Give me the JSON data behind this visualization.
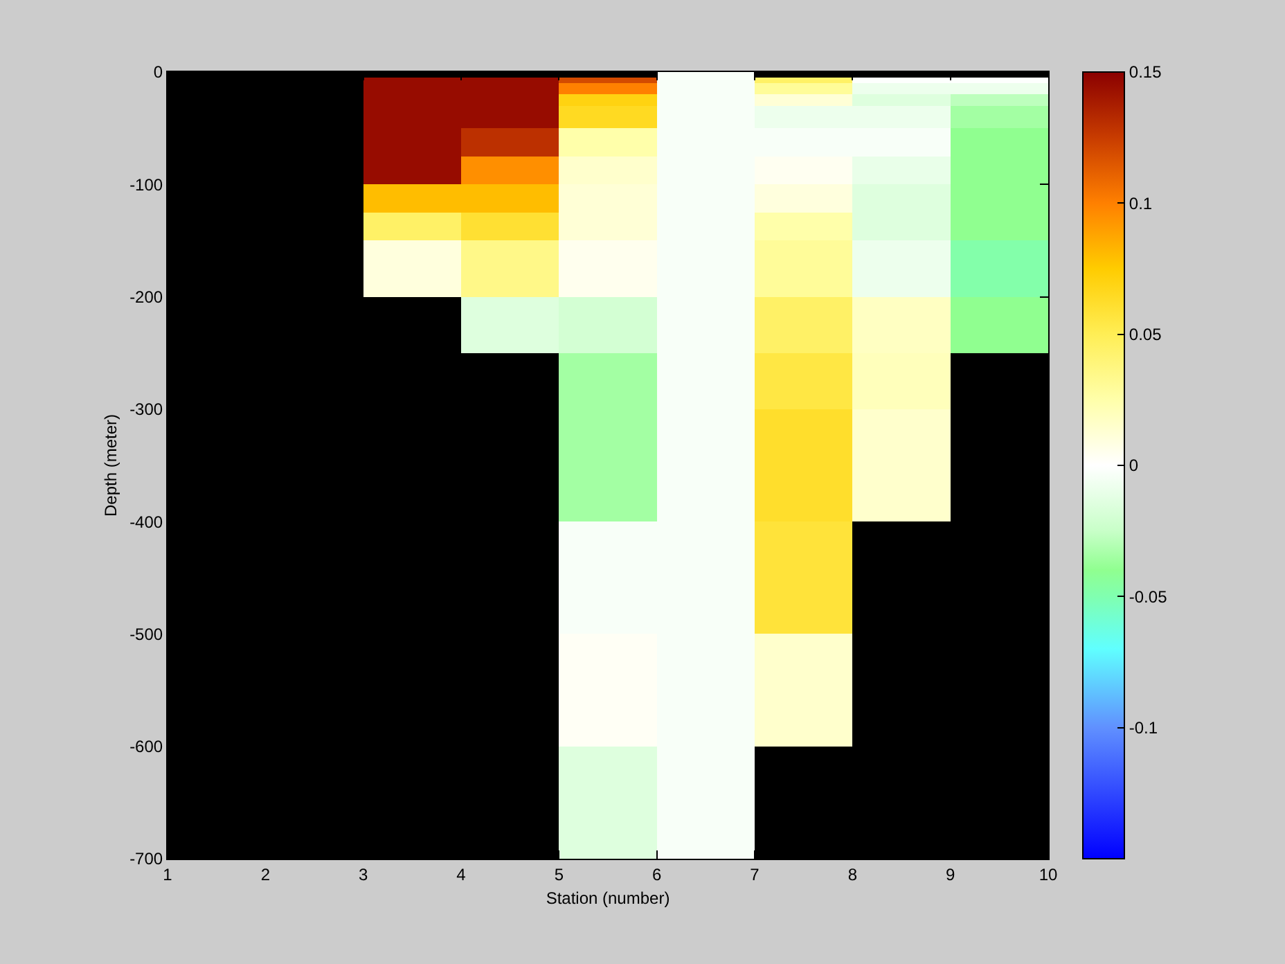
{
  "chart_data": {
    "type": "heatmap",
    "xlabel": "Station (number)",
    "ylabel": "Depth (meter)",
    "x": [
      1.5,
      2.5,
      3.5,
      4.5,
      5.5,
      6.5,
      7.5,
      8.5,
      9.5
    ],
    "y": [
      -2.5,
      -7.5,
      -12.5,
      -17.5,
      -22.5,
      -27.5,
      -32.5,
      -37.5,
      -42.5,
      -47.5,
      -52.5,
      -57.5,
      -62.5,
      -67.5,
      -72.5,
      -77.5,
      -82.5,
      -87.5,
      -92.5,
      -97.5,
      -102.5,
      -107.5,
      -112.5,
      -117.5,
      -122.5,
      -127.5,
      -132.5,
      -137.5,
      -142.5,
      -147.5,
      -152.5,
      -157.5,
      -162.5,
      -167.5,
      -172.5,
      -177.5,
      -182.5,
      -187.5,
      -192.5,
      -197.5,
      -202.5,
      -207.5,
      -212.5,
      -217.5,
      -222.5,
      -227.5,
      -232.5,
      -237.5,
      -242.5,
      -247.5,
      -252.5,
      -257.5,
      -262.5,
      -267.5,
      -272.5,
      -277.5,
      -282.5,
      -287.5,
      -292.5,
      -297.5,
      -302.5,
      -307.5,
      -312.5,
      -317.5,
      -322.5,
      -327.5,
      -332.5,
      -337.5,
      -342.5,
      -347.5,
      -352.5,
      -357.5,
      -362.5,
      -367.5,
      -372.5,
      -377.5,
      -382.5,
      -387.5,
      -392.5,
      -397.5,
      -402.5,
      -407.5,
      -412.5,
      -417.5,
      -422.5,
      -427.5,
      -432.5,
      -437.5,
      -442.5,
      -447.5,
      -452.5,
      -457.5,
      -462.5,
      -467.5,
      -472.5,
      -477.5,
      -482.5,
      -487.5,
      -492.5,
      -497.5,
      -502.5,
      -507.5,
      -512.5,
      -517.5,
      -522.5,
      -527.5,
      -532.5,
      -537.5,
      -542.5,
      -547.5,
      -552.5,
      -557.5,
      -562.5,
      -567.5,
      -572.5,
      -577.5,
      -582.5,
      -587.5,
      -592.5,
      -597.5,
      -602.5,
      -607.5,
      -612.5,
      -617.5,
      -622.5,
      -627.5,
      -632.5,
      -637.5,
      -642.5,
      -647.5,
      -652.5,
      -657.5,
      -662.5,
      -667.5,
      -672.5,
      -677.5,
      -682.5,
      -687.5,
      -692.5,
      -697.5
    ],
    "cells": [
      [
        null,
        null,
        null,
        null,
        null,
        -0.003,
        null,
        null,
        null
      ],
      [
        null,
        null,
        0.145,
        0.145,
        0.12,
        -0.003,
        0.045,
        -0.001,
        -0.001
      ],
      [
        null,
        null,
        0.145,
        0.145,
        0.1,
        -0.003,
        0.03,
        -0.008,
        -0.008
      ],
      [
        null,
        null,
        0.145,
        0.145,
        0.1,
        -0.003,
        0.03,
        -0.008,
        -0.008
      ],
      [
        null,
        null,
        0.145,
        0.145,
        0.07,
        -0.003,
        0.012,
        -0.015,
        -0.028
      ],
      [
        null,
        null,
        0.145,
        0.145,
        0.07,
        -0.003,
        0.012,
        -0.015,
        -0.028
      ],
      [
        null,
        null,
        0.145,
        0.145,
        0.065,
        -0.003,
        -0.008,
        -0.008,
        -0.035
      ],
      [
        null,
        null,
        0.145,
        0.145,
        0.065,
        -0.003,
        -0.008,
        -0.008,
        -0.035
      ],
      [
        null,
        null,
        0.145,
        0.145,
        0.065,
        -0.003,
        -0.008,
        -0.008,
        -0.035
      ],
      [
        null,
        null,
        0.145,
        0.145,
        0.065,
        -0.003,
        -0.008,
        -0.008,
        -0.035
      ],
      [
        null,
        null,
        0.145,
        0.13,
        0.025,
        -0.003,
        -0.003,
        -0.003,
        -0.04
      ],
      [
        null,
        null,
        0.145,
        0.13,
        0.025,
        -0.003,
        -0.003,
        -0.003,
        -0.04
      ],
      [
        null,
        null,
        0.145,
        0.13,
        0.025,
        -0.003,
        -0.003,
        -0.003,
        -0.04
      ],
      [
        null,
        null,
        0.145,
        0.13,
        0.025,
        -0.003,
        -0.003,
        -0.003,
        -0.04
      ],
      [
        null,
        null,
        0.145,
        0.13,
        0.025,
        -0.003,
        -0.003,
        -0.003,
        -0.04
      ],
      [
        null,
        null,
        0.145,
        0.095,
        0.015,
        -0.003,
        0.004,
        -0.01,
        -0.04
      ],
      [
        null,
        null,
        0.145,
        0.095,
        0.015,
        -0.003,
        0.004,
        -0.01,
        -0.04
      ],
      [
        null,
        null,
        0.145,
        0.095,
        0.015,
        -0.003,
        0.004,
        -0.01,
        -0.04
      ],
      [
        null,
        null,
        0.145,
        0.095,
        0.015,
        -0.003,
        0.004,
        -0.01,
        -0.04
      ],
      [
        null,
        null,
        0.145,
        0.095,
        0.015,
        -0.003,
        0.004,
        -0.01,
        -0.04
      ],
      [
        null,
        null,
        0.08,
        0.08,
        0.012,
        -0.003,
        0.01,
        -0.015,
        -0.04
      ],
      [
        null,
        null,
        0.08,
        0.08,
        0.012,
        -0.003,
        0.01,
        -0.015,
        -0.04
      ],
      [
        null,
        null,
        0.08,
        0.08,
        0.012,
        -0.003,
        0.01,
        -0.015,
        -0.04
      ],
      [
        null,
        null,
        0.08,
        0.08,
        0.012,
        -0.003,
        0.01,
        -0.015,
        -0.04
      ],
      [
        null,
        null,
        0.08,
        0.08,
        0.012,
        -0.003,
        0.01,
        -0.015,
        -0.04
      ],
      [
        null,
        null,
        0.045,
        0.06,
        0.012,
        -0.003,
        0.025,
        -0.015,
        -0.04
      ],
      [
        null,
        null,
        0.045,
        0.06,
        0.012,
        -0.003,
        0.025,
        -0.015,
        -0.04
      ],
      [
        null,
        null,
        0.045,
        0.06,
        0.012,
        -0.003,
        0.025,
        -0.015,
        -0.04
      ],
      [
        null,
        null,
        0.045,
        0.06,
        0.012,
        -0.003,
        0.025,
        -0.015,
        -0.04
      ],
      [
        null,
        null,
        0.045,
        0.06,
        0.012,
        -0.003,
        0.025,
        -0.015,
        -0.04
      ],
      [
        null,
        null,
        0.01,
        0.035,
        0.005,
        -0.003,
        0.03,
        -0.008,
        -0.048
      ],
      [
        null,
        null,
        0.01,
        0.035,
        0.005,
        -0.003,
        0.03,
        -0.008,
        -0.048
      ],
      [
        null,
        null,
        0.01,
        0.035,
        0.005,
        -0.003,
        0.03,
        -0.008,
        -0.048
      ],
      [
        null,
        null,
        0.01,
        0.035,
        0.005,
        -0.003,
        0.03,
        -0.008,
        -0.048
      ],
      [
        null,
        null,
        0.01,
        0.035,
        0.005,
        -0.003,
        0.03,
        -0.008,
        -0.048
      ],
      [
        null,
        null,
        0.01,
        0.035,
        0.005,
        -0.003,
        0.03,
        -0.008,
        -0.048
      ],
      [
        null,
        null,
        0.01,
        0.035,
        0.005,
        -0.003,
        0.03,
        -0.008,
        -0.048
      ],
      [
        null,
        null,
        0.01,
        0.035,
        0.005,
        -0.003,
        0.03,
        -0.008,
        -0.048
      ],
      [
        null,
        null,
        0.01,
        0.035,
        0.005,
        -0.003,
        0.03,
        -0.008,
        -0.048
      ],
      [
        null,
        null,
        0.01,
        0.035,
        0.005,
        -0.003,
        0.03,
        -0.008,
        -0.048
      ],
      [
        null,
        null,
        null,
        -0.015,
        -0.02,
        -0.003,
        0.045,
        0.018,
        -0.04
      ],
      [
        null,
        null,
        null,
        -0.015,
        -0.02,
        -0.003,
        0.045,
        0.018,
        -0.04
      ],
      [
        null,
        null,
        null,
        -0.015,
        -0.02,
        -0.003,
        0.045,
        0.018,
        -0.04
      ],
      [
        null,
        null,
        null,
        -0.015,
        -0.02,
        -0.003,
        0.045,
        0.018,
        -0.04
      ],
      [
        null,
        null,
        null,
        -0.015,
        -0.02,
        -0.003,
        0.045,
        0.018,
        -0.04
      ],
      [
        null,
        null,
        null,
        -0.015,
        -0.02,
        -0.003,
        0.045,
        0.018,
        -0.04
      ],
      [
        null,
        null,
        null,
        -0.015,
        -0.02,
        -0.003,
        0.045,
        0.018,
        -0.04
      ],
      [
        null,
        null,
        null,
        -0.015,
        -0.02,
        -0.003,
        0.045,
        0.018,
        -0.04
      ],
      [
        null,
        null,
        null,
        -0.015,
        -0.02,
        -0.003,
        0.045,
        0.018,
        -0.04
      ],
      [
        null,
        null,
        null,
        -0.015,
        -0.02,
        -0.003,
        0.045,
        0.018,
        -0.04
      ],
      [
        null,
        null,
        null,
        null,
        -0.035,
        -0.003,
        0.055,
        0.02,
        null
      ],
      [
        null,
        null,
        null,
        null,
        -0.035,
        -0.003,
        0.055,
        0.02,
        null
      ],
      [
        null,
        null,
        null,
        null,
        -0.035,
        -0.003,
        0.055,
        0.02,
        null
      ],
      [
        null,
        null,
        null,
        null,
        -0.035,
        -0.003,
        0.055,
        0.02,
        null
      ],
      [
        null,
        null,
        null,
        null,
        -0.035,
        -0.003,
        0.055,
        0.02,
        null
      ],
      [
        null,
        null,
        null,
        null,
        -0.035,
        -0.003,
        0.055,
        0.02,
        null
      ],
      [
        null,
        null,
        null,
        null,
        -0.035,
        -0.003,
        0.055,
        0.02,
        null
      ],
      [
        null,
        null,
        null,
        null,
        -0.035,
        -0.003,
        0.055,
        0.02,
        null
      ],
      [
        null,
        null,
        null,
        null,
        -0.035,
        -0.003,
        0.055,
        0.02,
        null
      ],
      [
        null,
        null,
        null,
        null,
        -0.035,
        -0.003,
        0.055,
        0.02,
        null
      ],
      [
        null,
        null,
        null,
        null,
        -0.035,
        -0.003,
        0.062,
        0.015,
        null
      ],
      [
        null,
        null,
        null,
        null,
        -0.035,
        -0.003,
        0.062,
        0.015,
        null
      ],
      [
        null,
        null,
        null,
        null,
        -0.035,
        -0.003,
        0.062,
        0.015,
        null
      ],
      [
        null,
        null,
        null,
        null,
        -0.035,
        -0.003,
        0.062,
        0.015,
        null
      ],
      [
        null,
        null,
        null,
        null,
        -0.035,
        -0.003,
        0.062,
        0.015,
        null
      ],
      [
        null,
        null,
        null,
        null,
        -0.035,
        -0.003,
        0.062,
        0.015,
        null
      ],
      [
        null,
        null,
        null,
        null,
        -0.035,
        -0.003,
        0.062,
        0.015,
        null
      ],
      [
        null,
        null,
        null,
        null,
        -0.035,
        -0.003,
        0.062,
        0.015,
        null
      ],
      [
        null,
        null,
        null,
        null,
        -0.035,
        -0.003,
        0.062,
        0.015,
        null
      ],
      [
        null,
        null,
        null,
        null,
        -0.035,
        -0.003,
        0.062,
        0.015,
        null
      ],
      [
        null,
        null,
        null,
        null,
        -0.035,
        -0.003,
        0.062,
        0.015,
        null
      ],
      [
        null,
        null,
        null,
        null,
        -0.035,
        -0.003,
        0.062,
        0.015,
        null
      ],
      [
        null,
        null,
        null,
        null,
        -0.035,
        -0.003,
        0.062,
        0.015,
        null
      ],
      [
        null,
        null,
        null,
        null,
        -0.035,
        -0.003,
        0.062,
        0.015,
        null
      ],
      [
        null,
        null,
        null,
        null,
        -0.035,
        -0.003,
        0.062,
        0.015,
        null
      ],
      [
        null,
        null,
        null,
        null,
        -0.035,
        -0.003,
        0.062,
        0.015,
        null
      ],
      [
        null,
        null,
        null,
        null,
        -0.035,
        -0.003,
        0.062,
        0.015,
        null
      ],
      [
        null,
        null,
        null,
        null,
        -0.035,
        -0.003,
        0.062,
        0.015,
        null
      ],
      [
        null,
        null,
        null,
        null,
        -0.035,
        -0.003,
        0.062,
        0.015,
        null
      ],
      [
        null,
        null,
        null,
        null,
        -0.035,
        -0.003,
        0.062,
        0.015,
        null
      ],
      [
        null,
        null,
        null,
        null,
        -0.003,
        -0.003,
        0.058,
        null,
        null
      ],
      [
        null,
        null,
        null,
        null,
        -0.003,
        -0.003,
        0.058,
        null,
        null
      ],
      [
        null,
        null,
        null,
        null,
        -0.003,
        -0.003,
        0.058,
        null,
        null
      ],
      [
        null,
        null,
        null,
        null,
        -0.003,
        -0.003,
        0.058,
        null,
        null
      ],
      [
        null,
        null,
        null,
        null,
        -0.003,
        -0.003,
        0.058,
        null,
        null
      ],
      [
        null,
        null,
        null,
        null,
        -0.003,
        -0.003,
        0.058,
        null,
        null
      ],
      [
        null,
        null,
        null,
        null,
        -0.003,
        -0.003,
        0.058,
        null,
        null
      ],
      [
        null,
        null,
        null,
        null,
        -0.003,
        -0.003,
        0.058,
        null,
        null
      ],
      [
        null,
        null,
        null,
        null,
        -0.003,
        -0.003,
        0.058,
        null,
        null
      ],
      [
        null,
        null,
        null,
        null,
        -0.003,
        -0.003,
        0.058,
        null,
        null
      ],
      [
        null,
        null,
        null,
        null,
        -0.003,
        -0.003,
        0.058,
        null,
        null
      ],
      [
        null,
        null,
        null,
        null,
        -0.003,
        -0.003,
        0.058,
        null,
        null
      ],
      [
        null,
        null,
        null,
        null,
        -0.003,
        -0.003,
        0.058,
        null,
        null
      ],
      [
        null,
        null,
        null,
        null,
        -0.003,
        -0.003,
        0.058,
        null,
        null
      ],
      [
        null,
        null,
        null,
        null,
        -0.003,
        -0.003,
        0.058,
        null,
        null
      ],
      [
        null,
        null,
        null,
        null,
        -0.003,
        -0.003,
        0.058,
        null,
        null
      ],
      [
        null,
        null,
        null,
        null,
        -0.003,
        -0.003,
        0.058,
        null,
        null
      ],
      [
        null,
        null,
        null,
        null,
        -0.003,
        -0.003,
        0.058,
        null,
        null
      ],
      [
        null,
        null,
        null,
        null,
        -0.003,
        -0.003,
        0.058,
        null,
        null
      ],
      [
        null,
        null,
        null,
        null,
        -0.003,
        -0.003,
        0.058,
        null,
        null
      ],
      [
        null,
        null,
        null,
        null,
        0.003,
        -0.003,
        0.015,
        null,
        null
      ],
      [
        null,
        null,
        null,
        null,
        0.003,
        -0.003,
        0.015,
        null,
        null
      ],
      [
        null,
        null,
        null,
        null,
        0.003,
        -0.003,
        0.015,
        null,
        null
      ],
      [
        null,
        null,
        null,
        null,
        0.003,
        -0.003,
        0.015,
        null,
        null
      ],
      [
        null,
        null,
        null,
        null,
        0.003,
        -0.003,
        0.015,
        null,
        null
      ],
      [
        null,
        null,
        null,
        null,
        0.003,
        -0.003,
        0.015,
        null,
        null
      ],
      [
        null,
        null,
        null,
        null,
        0.003,
        -0.003,
        0.015,
        null,
        null
      ],
      [
        null,
        null,
        null,
        null,
        0.003,
        -0.003,
        0.015,
        null,
        null
      ],
      [
        null,
        null,
        null,
        null,
        0.003,
        -0.003,
        0.015,
        null,
        null
      ],
      [
        null,
        null,
        null,
        null,
        0.003,
        -0.003,
        0.015,
        null,
        null
      ],
      [
        null,
        null,
        null,
        null,
        0.003,
        -0.003,
        0.015,
        null,
        null
      ],
      [
        null,
        null,
        null,
        null,
        0.003,
        -0.003,
        0.015,
        null,
        null
      ],
      [
        null,
        null,
        null,
        null,
        0.003,
        -0.003,
        0.015,
        null,
        null
      ],
      [
        null,
        null,
        null,
        null,
        0.003,
        -0.003,
        0.015,
        null,
        null
      ],
      [
        null,
        null,
        null,
        null,
        0.003,
        -0.003,
        0.015,
        null,
        null
      ],
      [
        null,
        null,
        null,
        null,
        0.003,
        -0.003,
        0.015,
        null,
        null
      ],
      [
        null,
        null,
        null,
        null,
        0.003,
        -0.003,
        0.015,
        null,
        null
      ],
      [
        null,
        null,
        null,
        null,
        0.003,
        -0.003,
        0.015,
        null,
        null
      ],
      [
        null,
        null,
        null,
        null,
        0.003,
        -0.003,
        0.015,
        null,
        null
      ],
      [
        null,
        null,
        null,
        null,
        0.003,
        -0.003,
        0.015,
        null,
        null
      ],
      [
        null,
        null,
        null,
        null,
        -0.015,
        -0.003,
        null,
        null,
        null
      ],
      [
        null,
        null,
        null,
        null,
        -0.015,
        -0.003,
        null,
        null,
        null
      ],
      [
        null,
        null,
        null,
        null,
        -0.015,
        -0.003,
        null,
        null,
        null
      ],
      [
        null,
        null,
        null,
        null,
        -0.015,
        -0.003,
        null,
        null,
        null
      ],
      [
        null,
        null,
        null,
        null,
        -0.015,
        -0.003,
        null,
        null,
        null
      ],
      [
        null,
        null,
        null,
        null,
        -0.015,
        -0.003,
        null,
        null,
        null
      ],
      [
        null,
        null,
        null,
        null,
        -0.015,
        -0.003,
        null,
        null,
        null
      ],
      [
        null,
        null,
        null,
        null,
        -0.015,
        -0.003,
        null,
        null,
        null
      ],
      [
        null,
        null,
        null,
        null,
        -0.015,
        -0.003,
        null,
        null,
        null
      ],
      [
        null,
        null,
        null,
        null,
        -0.015,
        -0.003,
        null,
        null,
        null
      ],
      [
        null,
        null,
        null,
        null,
        -0.015,
        -0.003,
        null,
        null,
        null
      ],
      [
        null,
        null,
        null,
        null,
        -0.015,
        -0.003,
        null,
        null,
        null
      ],
      [
        null,
        null,
        null,
        null,
        -0.015,
        -0.003,
        null,
        null,
        null
      ],
      [
        null,
        null,
        null,
        null,
        -0.015,
        -0.003,
        null,
        null,
        null
      ],
      [
        null,
        null,
        null,
        null,
        -0.015,
        -0.003,
        null,
        null,
        null
      ],
      [
        null,
        null,
        null,
        null,
        -0.015,
        -0.003,
        null,
        null,
        null
      ],
      [
        null,
        null,
        null,
        null,
        -0.015,
        -0.003,
        null,
        null,
        null
      ],
      [
        null,
        null,
        null,
        null,
        -0.015,
        -0.003,
        null,
        null,
        null
      ],
      [
        null,
        null,
        null,
        null,
        -0.015,
        -0.003,
        null,
        null,
        null
      ],
      [
        null,
        null,
        null,
        null,
        -0.015,
        -0.003,
        null,
        null,
        null
      ]
    ],
    "xlim": [
      1,
      10
    ],
    "xticks": [
      1,
      2,
      3,
      4,
      5,
      6,
      7,
      8,
      9,
      10
    ],
    "ylim": [
      -700,
      0
    ],
    "yticks": [
      -700,
      -600,
      -500,
      -400,
      -300,
      -200,
      -100,
      0
    ],
    "clim": [
      -0.15,
      0.15
    ],
    "cticks": [
      -0.1,
      -0.05,
      0,
      0.05,
      0.1,
      0.15
    ]
  }
}
